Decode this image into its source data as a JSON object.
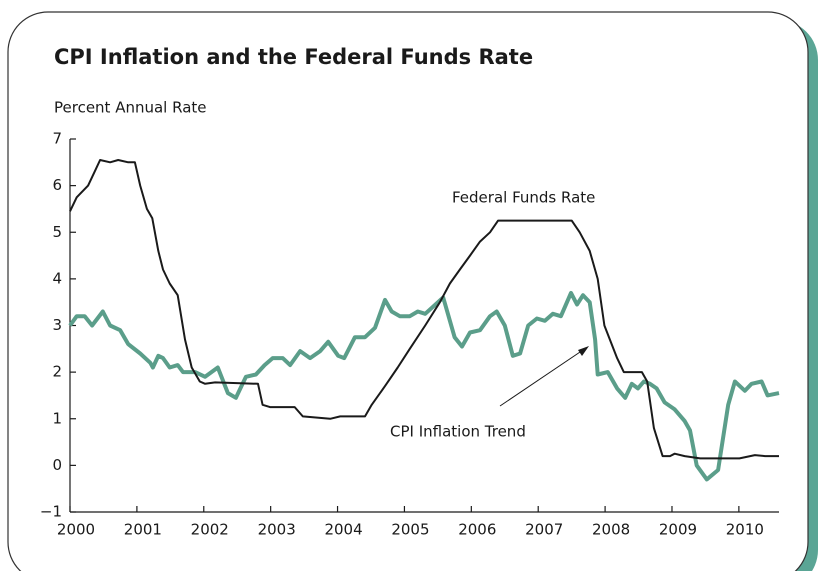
{
  "chart_data": {
    "type": "line",
    "title": "CPI Inflation and the Federal Funds Rate",
    "y_label": "Percent Annual Rate",
    "xlim": [
      2000,
      2010.6
    ],
    "xticks": [
      2000,
      2001,
      2002,
      2003,
      2004,
      2005,
      2006,
      2007,
      2008,
      2009,
      2010
    ],
    "ylim": [
      -1,
      7
    ],
    "yticks": [
      {
        "value": -1,
        "label": "−1"
      },
      0,
      1,
      2,
      3,
      4,
      5,
      6,
      7
    ],
    "series": [
      {
        "name": "Federal Funds Rate",
        "color": "#1a1a1a",
        "x": [
          2000.0,
          2000.1,
          2000.27,
          2000.37,
          2000.45,
          2000.6,
          2000.72,
          2000.87,
          2000.97,
          2001.05,
          2001.15,
          2001.23,
          2001.32,
          2001.39,
          2001.49,
          2001.61,
          2001.72,
          2001.82,
          2001.94,
          2002.02,
          2002.17,
          2002.81,
          2002.88,
          2002.99,
          2003.36,
          2003.48,
          2003.89,
          2004.04,
          2004.41,
          2004.51,
          2004.71,
          2004.9,
          2005.08,
          2005.31,
          2005.53,
          2005.68,
          2005.83,
          2005.98,
          2006.13,
          2006.28,
          2006.4,
          2007.5,
          2007.62,
          2007.77,
          2007.89,
          2007.99,
          2008.18,
          2008.28,
          2008.55,
          2008.63,
          2008.73,
          2008.86,
          2008.97,
          2009.04,
          2009.19,
          2009.42,
          2010.01,
          2010.24,
          2010.39,
          2010.6
        ],
        "values": [
          5.45,
          5.75,
          6.0,
          6.3,
          6.55,
          6.5,
          6.55,
          6.5,
          6.5,
          6.0,
          5.5,
          5.3,
          4.6,
          4.2,
          3.9,
          3.65,
          2.7,
          2.1,
          1.8,
          1.75,
          1.78,
          1.75,
          1.3,
          1.25,
          1.25,
          1.05,
          1.0,
          1.05,
          1.05,
          1.3,
          1.7,
          2.1,
          2.5,
          3.0,
          3.5,
          3.9,
          4.2,
          4.5,
          4.8,
          5.0,
          5.25,
          5.25,
          5.0,
          4.6,
          4.0,
          3.0,
          2.3,
          2.0,
          2.0,
          1.8,
          0.8,
          0.2,
          0.2,
          0.25,
          0.2,
          0.15,
          0.15,
          0.22,
          0.2,
          0.2
        ]
      },
      {
        "name": "CPI Inflation Trend",
        "color": "#5b9e8a",
        "x": [
          2000.0,
          2000.1,
          2000.22,
          2000.33,
          2000.49,
          2000.6,
          2000.75,
          2000.87,
          2001.05,
          2001.2,
          2001.24,
          2001.32,
          2001.39,
          2001.49,
          2001.61,
          2001.69,
          2001.87,
          2002.02,
          2002.21,
          2002.36,
          2002.48,
          2002.63,
          2002.78,
          2002.91,
          2003.03,
          2003.18,
          2003.29,
          2003.44,
          2003.59,
          2003.74,
          2003.86,
          2004.01,
          2004.1,
          2004.26,
          2004.41,
          2004.56,
          2004.71,
          2004.81,
          2004.93,
          2005.08,
          2005.2,
          2005.31,
          2005.58,
          2005.75,
          2005.86,
          2005.98,
          2006.13,
          2006.28,
          2006.38,
          2006.5,
          2006.62,
          2006.73,
          2006.85,
          2006.98,
          2007.1,
          2007.22,
          2007.34,
          2007.49,
          2007.58,
          2007.67,
          2007.77,
          2007.85,
          2007.89,
          2008.04,
          2008.18,
          2008.3,
          2008.4,
          2008.49,
          2008.58,
          2008.67,
          2008.77,
          2008.89,
          2009.04,
          2009.19,
          2009.27,
          2009.37,
          2009.52,
          2009.69,
          2009.84,
          2009.94,
          2010.09,
          2010.19,
          2010.34,
          2010.43,
          2010.6
        ],
        "values": [
          3.0,
          3.2,
          3.2,
          3.0,
          3.3,
          3.0,
          2.9,
          2.6,
          2.4,
          2.2,
          2.1,
          2.35,
          2.3,
          2.1,
          2.15,
          2.0,
          2.0,
          1.9,
          2.1,
          1.55,
          1.45,
          1.9,
          1.95,
          2.15,
          2.3,
          2.3,
          2.15,
          2.45,
          2.3,
          2.45,
          2.65,
          2.35,
          2.3,
          2.75,
          2.75,
          2.95,
          3.55,
          3.3,
          3.2,
          3.2,
          3.3,
          3.25,
          3.6,
          2.75,
          2.55,
          2.85,
          2.9,
          3.2,
          3.3,
          3.0,
          2.35,
          2.4,
          3.0,
          3.15,
          3.1,
          3.25,
          3.2,
          3.7,
          3.45,
          3.65,
          3.5,
          2.7,
          1.95,
          2.0,
          1.65,
          1.45,
          1.75,
          1.65,
          1.8,
          1.75,
          1.65,
          1.35,
          1.2,
          0.95,
          0.75,
          0.0,
          -0.3,
          -0.1,
          1.3,
          1.8,
          1.6,
          1.75,
          1.8,
          1.5,
          1.55
        ]
      }
    ]
  }
}
